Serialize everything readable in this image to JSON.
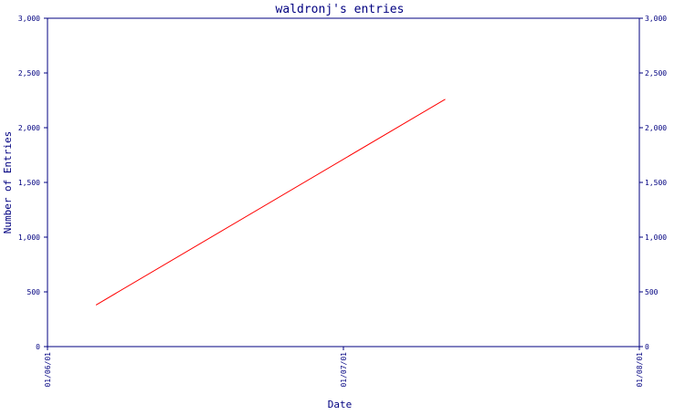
{
  "chart_data": {
    "type": "line",
    "title": "waldronj's entries",
    "xlabel": "Date",
    "ylabel": "Number of Entries",
    "x_ticks": [
      "01/06/01",
      "01/07/01",
      "01/08/01"
    ],
    "y_ticks": [
      "0",
      "500",
      "1,000",
      "1,500",
      "2,000",
      "2,500",
      "3,000"
    ],
    "ylim": [
      0,
      3000
    ],
    "xlim": [
      "2001-06-01",
      "2001-08-01"
    ],
    "series": [
      {
        "x": [
          "2001-06-06",
          "2001-07-12"
        ],
        "y": [
          380,
          2260
        ]
      }
    ],
    "line_color": "#ff0000",
    "axis_color": "#000080",
    "grid": false,
    "right_axis_mirror": true
  }
}
